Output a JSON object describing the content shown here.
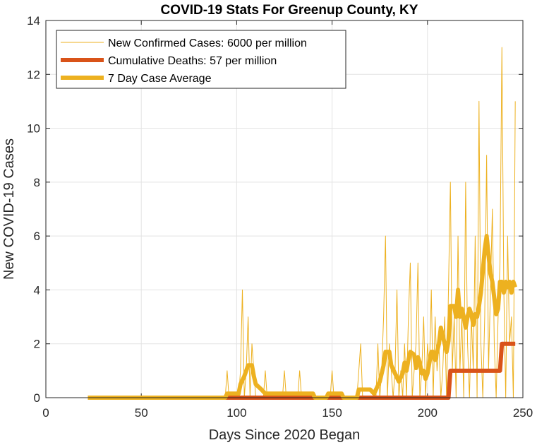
{
  "chart_data": {
    "type": "line",
    "title": "COVID-19 Stats For Greenup County, KY",
    "xlabel": "Days Since 2020 Began",
    "ylabel": "New COVID-19 Cases",
    "xlim": [
      0,
      250
    ],
    "ylim": [
      0,
      14
    ],
    "xticks": [
      0,
      50,
      100,
      150,
      200,
      250
    ],
    "yticks": [
      0,
      2,
      4,
      6,
      8,
      10,
      12,
      14
    ],
    "grid": true,
    "legend_position": "top-left",
    "series": [
      {
        "name": "New Confirmed Cases: 6000 per million",
        "color": "#EDB120",
        "style": "thin",
        "points": [
          [
            22,
            0
          ],
          [
            94,
            0
          ],
          [
            95,
            1
          ],
          [
            96,
            0
          ],
          [
            101,
            0
          ],
          [
            102,
            1
          ],
          [
            103,
            4
          ],
          [
            104,
            0
          ],
          [
            105,
            1
          ],
          [
            106,
            3
          ],
          [
            107,
            0
          ],
          [
            108,
            2
          ],
          [
            109,
            1
          ],
          [
            110,
            0
          ],
          [
            114,
            0
          ],
          [
            115,
            1
          ],
          [
            116,
            0
          ],
          [
            124,
            0
          ],
          [
            125,
            1
          ],
          [
            126,
            0
          ],
          [
            132,
            0
          ],
          [
            133,
            1
          ],
          [
            134,
            0
          ],
          [
            149,
            0
          ],
          [
            150,
            1
          ],
          [
            151,
            0
          ],
          [
            163,
            0
          ],
          [
            164,
            1
          ],
          [
            165,
            2
          ],
          [
            166,
            0
          ],
          [
            173,
            0
          ],
          [
            174,
            2
          ],
          [
            175,
            0
          ],
          [
            176,
            1
          ],
          [
            177,
            3
          ],
          [
            178,
            6
          ],
          [
            179,
            0
          ],
          [
            180,
            2
          ],
          [
            181,
            1
          ],
          [
            182,
            0
          ],
          [
            183,
            1
          ],
          [
            184,
            4
          ],
          [
            185,
            0
          ],
          [
            186,
            1
          ],
          [
            187,
            0
          ],
          [
            188,
            2
          ],
          [
            189,
            0
          ],
          [
            190,
            3
          ],
          [
            191,
            5
          ],
          [
            192,
            0
          ],
          [
            193,
            1
          ],
          [
            194,
            2
          ],
          [
            195,
            5
          ],
          [
            196,
            0
          ],
          [
            197,
            1
          ],
          [
            198,
            3
          ],
          [
            199,
            0
          ],
          [
            200,
            2
          ],
          [
            201,
            1
          ],
          [
            202,
            4
          ],
          [
            203,
            0
          ],
          [
            204,
            3
          ],
          [
            205,
            1
          ],
          [
            206,
            2
          ],
          [
            207,
            0
          ],
          [
            208,
            1
          ],
          [
            209,
            3
          ],
          [
            210,
            0
          ],
          [
            211,
            4
          ],
          [
            212,
            8
          ],
          [
            213,
            1
          ],
          [
            214,
            3
          ],
          [
            215,
            0
          ],
          [
            216,
            6
          ],
          [
            217,
            1
          ],
          [
            218,
            3
          ],
          [
            219,
            0
          ],
          [
            220,
            8
          ],
          [
            221,
            2
          ],
          [
            222,
            0
          ],
          [
            223,
            3
          ],
          [
            224,
            1
          ],
          [
            225,
            6
          ],
          [
            226,
            0
          ],
          [
            227,
            11
          ],
          [
            228,
            2
          ],
          [
            229,
            0
          ],
          [
            230,
            3
          ],
          [
            231,
            9
          ],
          [
            232,
            1
          ],
          [
            233,
            4
          ],
          [
            234,
            7
          ],
          [
            235,
            2
          ],
          [
            236,
            0
          ],
          [
            237,
            3
          ],
          [
            238,
            5
          ],
          [
            239,
            13
          ],
          [
            240,
            4
          ],
          [
            241,
            0
          ],
          [
            242,
            6
          ],
          [
            243,
            2
          ],
          [
            244,
            3
          ],
          [
            245,
            0
          ],
          [
            246,
            11
          ]
        ]
      },
      {
        "name": "Cumulative Deaths: 57 per million",
        "color": "#D95319",
        "style": "thick",
        "points": [
          [
            22,
            0
          ],
          [
            211,
            0
          ],
          [
            212,
            1
          ],
          [
            238,
            1
          ],
          [
            239,
            2
          ],
          [
            246,
            2
          ]
        ]
      },
      {
        "name": "7 Day Case Average",
        "color": "#EDB120",
        "style": "thick",
        "points": [
          [
            22,
            0
          ],
          [
            94,
            0
          ],
          [
            95,
            0.15
          ],
          [
            101,
            0.15
          ],
          [
            102,
            0.5
          ],
          [
            104,
            0.8
          ],
          [
            106,
            1.2
          ],
          [
            108,
            1.2
          ],
          [
            109,
            0.8
          ],
          [
            110,
            0.5
          ],
          [
            113,
            0.3
          ],
          [
            115,
            0.15
          ],
          [
            121,
            0.15
          ],
          [
            124,
            0.15
          ],
          [
            127,
            0.15
          ],
          [
            131,
            0.15
          ],
          [
            134,
            0.15
          ],
          [
            140,
            0.15
          ],
          [
            141,
            0
          ],
          [
            147,
            0
          ],
          [
            148,
            0.15
          ],
          [
            155,
            0.15
          ],
          [
            156,
            0
          ],
          [
            163,
            0
          ],
          [
            164,
            0.3
          ],
          [
            170,
            0.3
          ],
          [
            172,
            0.15
          ],
          [
            173,
            0.3
          ],
          [
            175,
            0.6
          ],
          [
            177,
            1.2
          ],
          [
            178,
            1.7
          ],
          [
            180,
            1.7
          ],
          [
            181,
            1.2
          ],
          [
            183,
            0.9
          ],
          [
            185,
            0.6
          ],
          [
            187,
            0.9
          ],
          [
            188,
            1.3
          ],
          [
            189,
            1.0
          ],
          [
            190,
            1.4
          ],
          [
            191,
            1.7
          ],
          [
            193,
            1.6
          ],
          [
            194,
            1.1
          ],
          [
            195,
            1.5
          ],
          [
            196,
            1.3
          ],
          [
            197,
            0.9
          ],
          [
            198,
            1.0
          ],
          [
            199,
            0.7
          ],
          [
            200,
            0.9
          ],
          [
            201,
            1.3
          ],
          [
            202,
            1.7
          ],
          [
            203,
            1.7
          ],
          [
            204,
            1.4
          ],
          [
            205,
            1.7
          ],
          [
            206,
            2.0
          ],
          [
            207,
            2.6
          ],
          [
            208,
            2.3
          ],
          [
            209,
            2.0
          ],
          [
            210,
            1.7
          ],
          [
            211,
            2.1
          ],
          [
            212,
            3.4
          ],
          [
            214,
            3.4
          ],
          [
            215,
            3.0
          ],
          [
            216,
            4.0
          ],
          [
            217,
            3.0
          ],
          [
            218,
            3.3
          ],
          [
            219,
            3.0
          ],
          [
            220,
            2.6
          ],
          [
            221,
            3.0
          ],
          [
            222,
            3.3
          ],
          [
            223,
            3.1
          ],
          [
            224,
            2.7
          ],
          [
            225,
            3.1
          ],
          [
            226,
            3.0
          ],
          [
            227,
            3.4
          ],
          [
            228,
            3.9
          ],
          [
            229,
            4.7
          ],
          [
            230,
            5.5
          ],
          [
            231,
            6.0
          ],
          [
            232,
            5.3
          ],
          [
            233,
            4.6
          ],
          [
            234,
            4.3
          ],
          [
            235,
            3.7
          ],
          [
            236,
            3.1
          ],
          [
            237,
            3.3
          ],
          [
            238,
            4.3
          ],
          [
            239,
            4.3
          ],
          [
            240,
            3.9
          ],
          [
            241,
            4.3
          ],
          [
            242,
            4.1
          ],
          [
            243,
            4.3
          ],
          [
            244,
            3.9
          ],
          [
            245,
            4.3
          ],
          [
            246,
            4.1
          ]
        ]
      }
    ]
  }
}
